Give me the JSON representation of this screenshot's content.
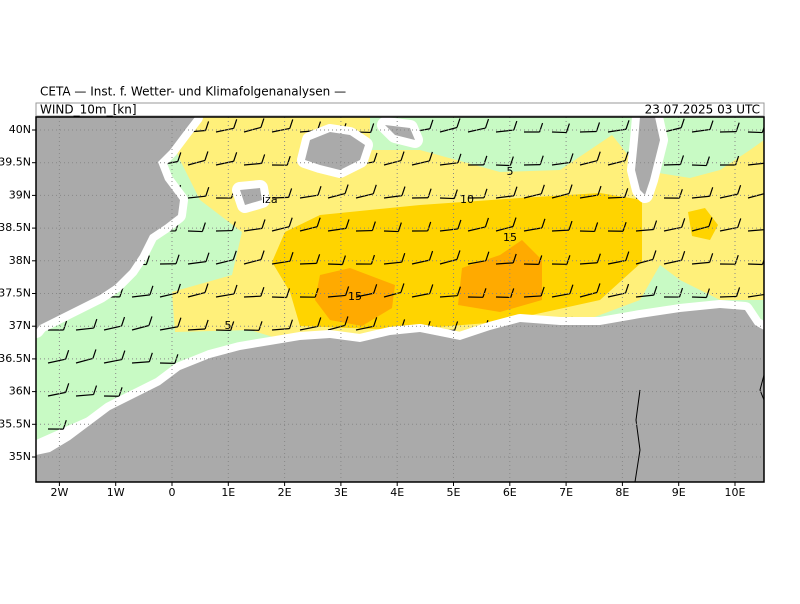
{
  "header": {
    "institute": "CETA — Inst. f. Wetter- und Klimafolgenanalysen —",
    "field": "WIND_10m_[kn]",
    "time": "23.07.2025 03 UTC"
  },
  "map": {
    "lon_ticks": [
      {
        "value": -2,
        "label": "2W"
      },
      {
        "value": -1,
        "label": "1W"
      },
      0,
      {
        "value": 1,
        "label": "1E"
      },
      {
        "value": 2,
        "label": "2E"
      },
      {
        "value": 3,
        "label": "3E"
      },
      {
        "value": 4,
        "label": "4E"
      },
      {
        "value": 5,
        "label": "5E"
      },
      {
        "value": 6,
        "label": "6E"
      },
      {
        "value": 7,
        "label": "7E"
      },
      {
        "value": 8,
        "label": "8E"
      },
      {
        "value": 9,
        "label": "9E"
      },
      {
        "value": 10,
        "label": "10E"
      }
    ],
    "lat_ticks": [
      {
        "value": 40,
        "label": "40N"
      },
      {
        "value": 39.5,
        "label": "39.5N"
      },
      {
        "value": 39,
        "label": "39N"
      },
      {
        "value": 38.5,
        "label": "38.5N"
      },
      {
        "value": 38,
        "label": "38N"
      },
      {
        "value": 37.5,
        "label": "37.5N"
      },
      {
        "value": 37,
        "label": "37N"
      },
      {
        "value": 36.5,
        "label": "36.5N"
      },
      {
        "value": 36,
        "label": "36N"
      },
      {
        "value": 35.5,
        "label": "35.5N"
      },
      {
        "value": 35,
        "label": "35N"
      }
    ],
    "contour_labels": [
      "5",
      "10",
      "15",
      "15",
      "5"
    ],
    "place_label": "iza"
  }
}
